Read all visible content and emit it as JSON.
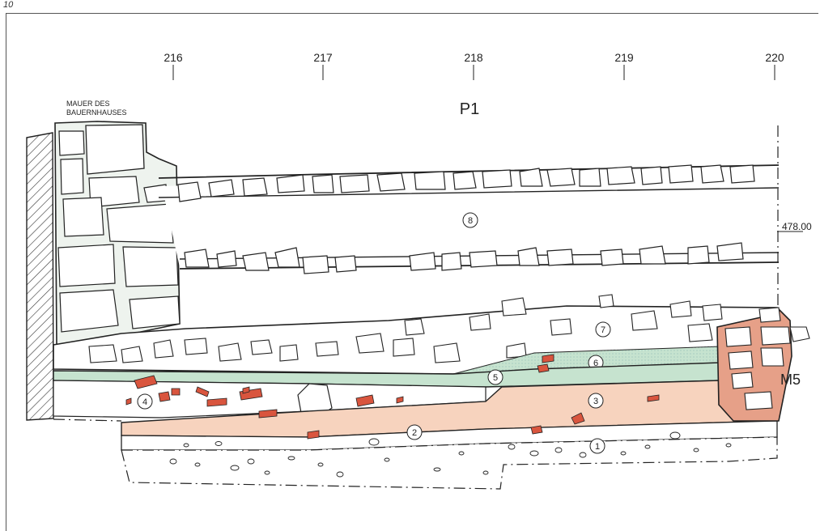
{
  "page_number": "10",
  "profile_title": "P1",
  "wall_label": [
    "MAUER DES",
    "BAUERNHAUSES"
  ],
  "grid_labels": [
    "216",
    "217",
    "218",
    "219",
    "220"
  ],
  "elevation_label": "478.00",
  "feature_label": "M5",
  "layer_numbers": [
    "1",
    "2",
    "3",
    "4",
    "5",
    "6",
    "7",
    "8"
  ],
  "colors": {
    "green_layer": "#c6e3cf",
    "salmon_layer": "#f7d3be",
    "brick": "#d9553e",
    "wall_mortar": "#e6a088",
    "line": "#222222"
  }
}
